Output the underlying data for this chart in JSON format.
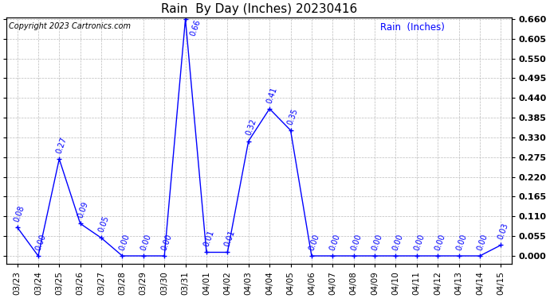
{
  "title": "Rain  By Day (Inches) 20230416",
  "copyright": "Copyright 2023 Cartronics.com",
  "legend_label": "Rain  (Inches)",
  "line_color": "blue",
  "marker": "+",
  "label_color": "blue",
  "background_color": "white",
  "grid_color": "#bbbbbb",
  "dates": [
    "03/23",
    "03/24",
    "03/25",
    "03/26",
    "03/27",
    "03/28",
    "03/29",
    "03/30",
    "03/31",
    "04/01",
    "04/02",
    "04/03",
    "04/04",
    "04/05",
    "04/06",
    "04/07",
    "04/08",
    "04/09",
    "04/10",
    "04/11",
    "04/12",
    "04/13",
    "04/14",
    "04/15"
  ],
  "values": [
    0.08,
    0.0,
    0.27,
    0.09,
    0.05,
    0.0,
    0.0,
    0.0,
    0.66,
    0.01,
    0.01,
    0.32,
    0.41,
    0.35,
    0.0,
    0.0,
    0.0,
    0.0,
    0.0,
    0.0,
    0.0,
    0.0,
    0.0,
    0.03
  ],
  "ylim_max": 0.66,
  "yticks": [
    0.0,
    0.055,
    0.11,
    0.165,
    0.22,
    0.275,
    0.33,
    0.385,
    0.44,
    0.495,
    0.55,
    0.605,
    0.66
  ],
  "title_fontsize": 11,
  "tick_fontsize": 7.5,
  "label_fontsize": 7,
  "copyright_fontsize": 7,
  "legend_fontsize": 8.5,
  "ytick_fontsize": 8,
  "ytick_fontweight": "bold"
}
